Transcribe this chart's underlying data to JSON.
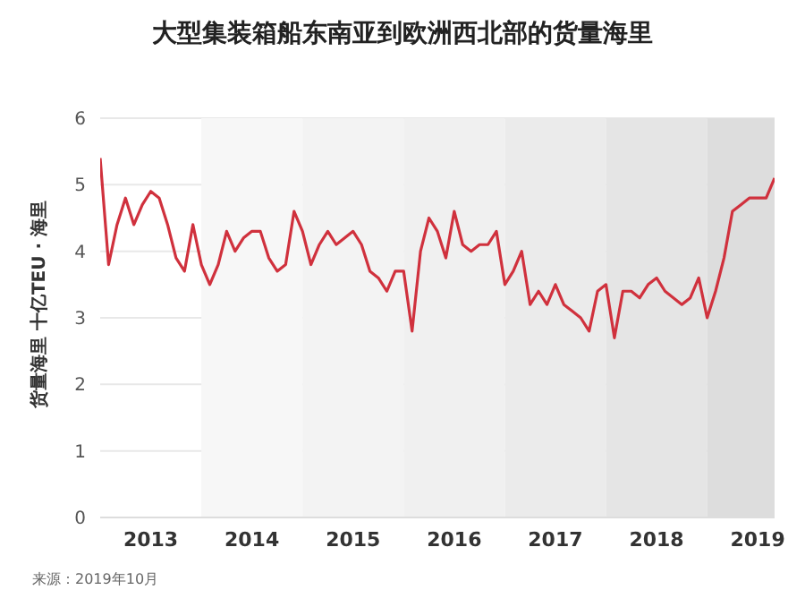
{
  "chart_data": {
    "type": "line",
    "title": "大型集装箱船东南亚到欧洲西北部的货量海里",
    "ylabel": "货量海里 十亿TEU · 海里",
    "annotations": [
      "来源：2019年10月"
    ],
    "x": [
      "2013-01",
      "2013-02",
      "2013-03",
      "2013-04",
      "2013-05",
      "2013-06",
      "2013-07",
      "2013-08",
      "2013-09",
      "2013-10",
      "2013-11",
      "2013-12",
      "2014-01",
      "2014-02",
      "2014-03",
      "2014-04",
      "2014-05",
      "2014-06",
      "2014-07",
      "2014-08",
      "2014-09",
      "2014-10",
      "2014-11",
      "2014-12",
      "2015-01",
      "2015-02",
      "2015-03",
      "2015-04",
      "2015-05",
      "2015-06",
      "2015-07",
      "2015-08",
      "2015-09",
      "2015-10",
      "2015-11",
      "2015-12",
      "2016-01",
      "2016-02",
      "2016-03",
      "2016-04",
      "2016-05",
      "2016-06",
      "2016-07",
      "2016-08",
      "2016-09",
      "2016-10",
      "2016-11",
      "2016-12",
      "2017-01",
      "2017-02",
      "2017-03",
      "2017-04",
      "2017-05",
      "2017-06",
      "2017-07",
      "2017-08",
      "2017-09",
      "2017-10",
      "2017-11",
      "2017-12",
      "2018-01",
      "2018-02",
      "2018-03",
      "2018-04",
      "2018-05",
      "2018-06",
      "2018-07",
      "2018-08",
      "2018-09",
      "2018-10",
      "2018-11",
      "2018-12",
      "2019-01",
      "2019-02",
      "2019-03",
      "2019-04",
      "2019-05",
      "2019-06",
      "2019-07",
      "2019-08",
      "2019-09"
    ],
    "series": [
      {
        "color": "#d0313d",
        "values": [
          5.4,
          3.8,
          4.4,
          4.8,
          4.4,
          4.7,
          4.9,
          4.8,
          4.4,
          3.9,
          3.7,
          4.4,
          3.8,
          3.5,
          3.8,
          4.3,
          4.0,
          4.2,
          4.3,
          4.3,
          3.9,
          3.7,
          3.8,
          4.6,
          4.3,
          3.8,
          4.1,
          4.3,
          4.1,
          4.2,
          4.3,
          4.1,
          3.7,
          3.6,
          3.4,
          3.7,
          3.7,
          2.8,
          4.0,
          4.5,
          4.3,
          3.9,
          4.6,
          4.1,
          4.0,
          4.1,
          4.1,
          4.3,
          3.5,
          3.7,
          4.0,
          3.2,
          3.4,
          3.2,
          3.5,
          3.2,
          3.1,
          3.0,
          2.8,
          3.4,
          3.5,
          2.7,
          3.4,
          3.4,
          3.3,
          3.5,
          3.6,
          3.4,
          3.3,
          3.2,
          3.3,
          3.6,
          3.0,
          3.4,
          3.9,
          4.6,
          4.7,
          4.8,
          4.8,
          4.8,
          5.1
        ]
      }
    ],
    "xlim": [
      "2013-01",
      "2019-09"
    ],
    "xticks": [
      {
        "value": "2013-07",
        "label": "2013"
      },
      {
        "value": "2014-07",
        "label": "2014"
      },
      {
        "value": "2015-07",
        "label": "2015"
      },
      {
        "value": "2016-07",
        "label": "2016"
      },
      {
        "value": "2017-07",
        "label": "2017"
      },
      {
        "value": "2018-07",
        "label": "2018"
      },
      {
        "value": "2019-07",
        "label": "2019"
      }
    ],
    "ylim": [
      0,
      6
    ],
    "yticks": [
      0,
      1,
      2,
      3,
      4,
      5,
      6
    ],
    "grid": "y",
    "marker": "none",
    "line_style": "solid",
    "legend": false,
    "bands": [
      {
        "axis": "x",
        "from": "2014-01",
        "to": "2015-01",
        "color": "#f7f7f7"
      },
      {
        "axis": "x",
        "from": "2015-01",
        "to": "2016-01",
        "color": "#f3f3f3"
      },
      {
        "axis": "x",
        "from": "2016-01",
        "to": "2017-01",
        "color": "#f0f0f0"
      },
      {
        "axis": "x",
        "from": "2017-01",
        "to": "2018-01",
        "color": "#ebebeb"
      },
      {
        "axis": "x",
        "from": "2018-01",
        "to": "2019-01",
        "color": "#e5e5e5"
      },
      {
        "axis": "x",
        "from": "2019-01",
        "to": "2019-09",
        "color": "#dddddd"
      }
    ]
  }
}
